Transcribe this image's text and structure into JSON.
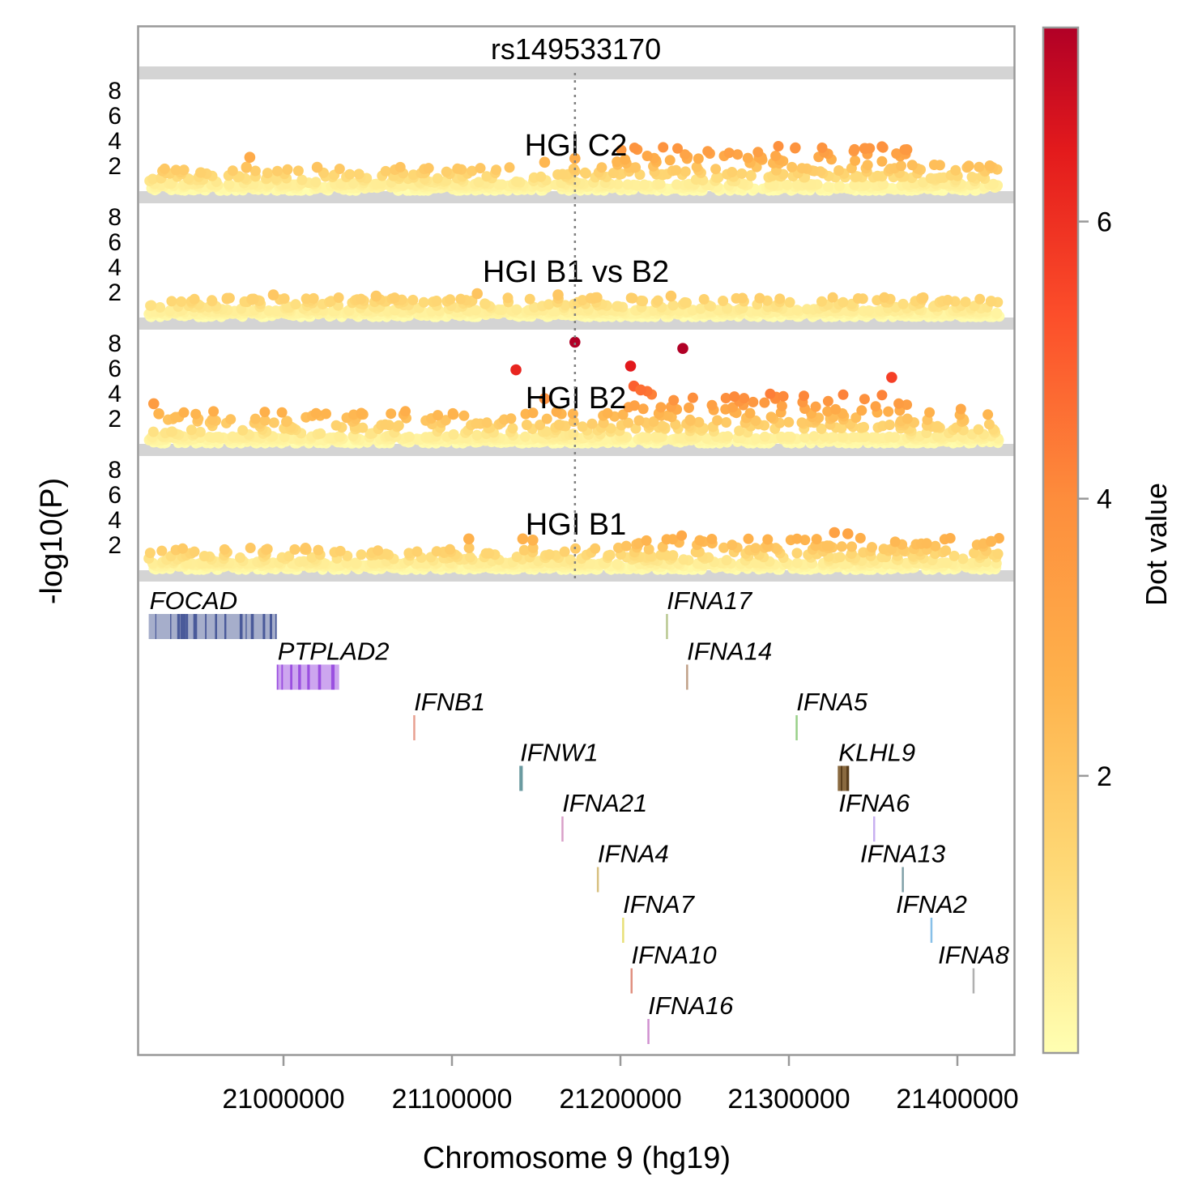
{
  "chart_data": {
    "type": "scatter",
    "title": "rs149533170",
    "xlabel": "Chromosome 9 (hg19)",
    "ylabel": "-log10(P)",
    "xlim": [
      20910000,
      21432000
    ],
    "ylim": [
      0,
      9.5
    ],
    "x_ticks": [
      21000000,
      21100000,
      21200000,
      21300000,
      21400000
    ],
    "x_tick_labels": [
      "21000000",
      "21100000",
      "21200000",
      "21300000",
      "21400000"
    ],
    "y_ticks": [
      2,
      4,
      6,
      8
    ],
    "y_tick_labels": [
      "2",
      "4",
      "6",
      "8"
    ],
    "lead_snp_position": 21173000,
    "colorbar": {
      "label": "Dot value",
      "range": [
        0,
        7.4
      ],
      "ticks": [
        2,
        4,
        6
      ],
      "tick_labels": [
        "2",
        "4",
        "6"
      ],
      "colors": [
        "#ffffb2",
        "#fed976",
        "#feb24c",
        "#fd8d3c",
        "#fc4e2a",
        "#e31a1c",
        "#b10026"
      ]
    },
    "panels": [
      {
        "name": "HGI C2",
        "highlights": [
          {
            "x": 21173000,
            "y": 2.6
          },
          {
            "x": 21155000,
            "y": 2.3
          },
          {
            "x": 20980000,
            "y": 2.7
          },
          {
            "x": 21020000,
            "y": 1.9
          },
          {
            "x": 21345000,
            "y": 3.4
          },
          {
            "x": 21370000,
            "y": 3.3
          }
        ],
        "segments": [
          {
            "x0": 20920000,
            "x1": 21197000,
            "base": 0.6,
            "spread": 1.2,
            "peak": 2.0
          },
          {
            "x0": 21197000,
            "x1": 21242000,
            "base": 2.6,
            "spread": 1.0,
            "peak": 3.6
          },
          {
            "x0": 21242000,
            "x1": 21278000,
            "base": 1.5,
            "spread": 1.5,
            "peak": 3.2
          },
          {
            "x0": 21278000,
            "x1": 21372000,
            "base": 2.2,
            "spread": 1.2,
            "peak": 3.6
          },
          {
            "x0": 21372000,
            "x1": 21425000,
            "base": 0.7,
            "spread": 1.3,
            "peak": 2.5
          }
        ]
      },
      {
        "name": "HGI B1 vs B2",
        "highlights": [
          {
            "x": 21115000,
            "y": 1.9
          },
          {
            "x": 21163000,
            "y": 1.8
          },
          {
            "x": 20994000,
            "y": 1.8
          },
          {
            "x": 21055000,
            "y": 1.7
          },
          {
            "x": 21230000,
            "y": 1.7
          },
          {
            "x": 21420000,
            "y": 1.3
          }
        ],
        "segments": [
          {
            "x0": 20920000,
            "x1": 21425000,
            "base": 0.5,
            "spread": 1.0,
            "peak": 1.6
          }
        ]
      },
      {
        "name": "HGI B2",
        "highlights": [
          {
            "x": 21173000,
            "y": 8.1
          },
          {
            "x": 21237000,
            "y": 7.6
          },
          {
            "x": 21206000,
            "y": 6.2
          },
          {
            "x": 21138000,
            "y": 5.9
          },
          {
            "x": 21361000,
            "y": 5.3
          },
          {
            "x": 20923000,
            "y": 3.2
          },
          {
            "x": 20926000,
            "y": 2.4
          },
          {
            "x": 21208000,
            "y": 4.6
          },
          {
            "x": 21212000,
            "y": 4.3
          },
          {
            "x": 21155000,
            "y": 3.6
          }
        ],
        "segments": [
          {
            "x0": 20920000,
            "x1": 21200000,
            "base": 0.6,
            "spread": 1.5,
            "peak": 2.6
          },
          {
            "x0": 21200000,
            "x1": 21240000,
            "base": 2.4,
            "spread": 1.8,
            "peak": 4.2
          },
          {
            "x0": 21240000,
            "x1": 21285000,
            "base": 1.8,
            "spread": 1.8,
            "peak": 3.8
          },
          {
            "x0": 21285000,
            "x1": 21372000,
            "base": 2.4,
            "spread": 1.6,
            "peak": 4.0
          },
          {
            "x0": 21372000,
            "x1": 21425000,
            "base": 0.8,
            "spread": 1.6,
            "peak": 2.8
          }
        ]
      },
      {
        "name": "HGI B1",
        "highlights": [
          {
            "x": 21142000,
            "y": 2.5
          },
          {
            "x": 21148000,
            "y": 2.4
          },
          {
            "x": 21110000,
            "y": 2.5
          },
          {
            "x": 21327000,
            "y": 3.0
          },
          {
            "x": 21335000,
            "y": 2.9
          },
          {
            "x": 21420000,
            "y": 2.3
          }
        ],
        "segments": [
          {
            "x0": 20920000,
            "x1": 21197000,
            "base": 0.5,
            "spread": 1.1,
            "peak": 1.8
          },
          {
            "x0": 21197000,
            "x1": 21245000,
            "base": 1.5,
            "spread": 1.5,
            "peak": 2.9
          },
          {
            "x0": 21245000,
            "x1": 21425000,
            "base": 0.9,
            "spread": 1.4,
            "peak": 2.6
          }
        ]
      }
    ],
    "genes": [
      {
        "name": "FOCAD",
        "start": 20920000,
        "end": 20996000,
        "row": 0,
        "color": "#a6aecb",
        "exon": "#4a5a9a",
        "label_at": "left"
      },
      {
        "name": "PTPLAD2",
        "start": 20996000,
        "end": 21033000,
        "row": 1,
        "color": "#cda6ef",
        "exon": "#9a4fe0",
        "label_at": "left"
      },
      {
        "name": "IFNB1",
        "start": 21077000,
        "end": 21078000,
        "row": 2,
        "color": "#e8a090",
        "exon": "#d07a68",
        "label_at": "left"
      },
      {
        "name": "IFNW1",
        "start": 21140000,
        "end": 21142000,
        "row": 3,
        "color": "#6a9aa0",
        "exon": "#4a7e86",
        "label_at": "left"
      },
      {
        "name": "IFNA21",
        "start": 21165000,
        "end": 21166000,
        "row": 4,
        "color": "#d8a0c8",
        "exon": "#c080b0",
        "label_at": "left"
      },
      {
        "name": "IFNA4",
        "start": 21186000,
        "end": 21187000,
        "row": 5,
        "color": "#d8c080",
        "exon": "#c0a060",
        "label_at": "left"
      },
      {
        "name": "IFNA7",
        "start": 21201000,
        "end": 21202000,
        "row": 6,
        "color": "#e8e078",
        "exon": "#d0c858",
        "label_at": "left"
      },
      {
        "name": "IFNA10",
        "start": 21206000,
        "end": 21207000,
        "row": 7,
        "color": "#e09080",
        "exon": "#c87060",
        "label_at": "left"
      },
      {
        "name": "IFNA16",
        "start": 21216000,
        "end": 21217000,
        "row": 8,
        "color": "#d090d0",
        "exon": "#b870b8",
        "label_at": "left"
      },
      {
        "name": "IFNA17",
        "start": 21227000,
        "end": 21228000,
        "row": 0,
        "color": "#b8c890",
        "exon": "#98a870",
        "label_at": "left"
      },
      {
        "name": "IFNA14",
        "start": 21239000,
        "end": 21240000,
        "row": 1,
        "color": "#c0a088",
        "exon": "#a08068",
        "label_at": "left"
      },
      {
        "name": "IFNA5",
        "start": 21304000,
        "end": 21305000,
        "row": 2,
        "color": "#98d088",
        "exon": "#78b068",
        "label_at": "left"
      },
      {
        "name": "KLHL9",
        "start": 21329000,
        "end": 21335000,
        "row": 3,
        "color": "#8a6a40",
        "exon": "#5a3e1c",
        "label_at": "left"
      },
      {
        "name": "IFNA6",
        "start": 21350000,
        "end": 21351000,
        "row": 4,
        "color": "#c8b0f0",
        "exon": "#a890d8",
        "label_at": "center"
      },
      {
        "name": "IFNA13",
        "start": 21367000,
        "end": 21368000,
        "row": 5,
        "color": "#80a0a8",
        "exon": "#608088",
        "label_at": "center"
      },
      {
        "name": "IFNA2",
        "start": 21384000,
        "end": 21385000,
        "row": 6,
        "color": "#88c0e8",
        "exon": "#68a0d0",
        "label_at": "center"
      },
      {
        "name": "IFNA8",
        "start": 21409000,
        "end": 21410000,
        "row": 7,
        "color": "#b0b0b0",
        "exon": "#909090",
        "label_at": "center"
      }
    ]
  }
}
